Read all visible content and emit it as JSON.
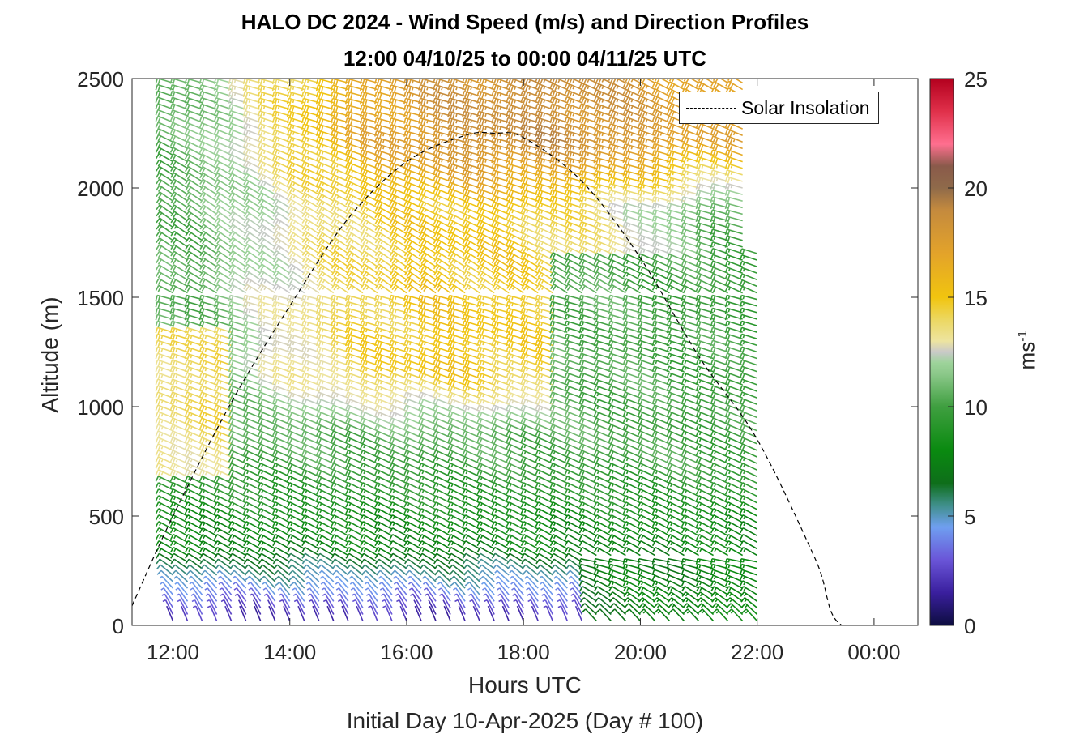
{
  "title_line1": "HALO DC 2024 - Wind Speed (m/s) and Direction Profiles",
  "title_line2": "12:00 04/10/25 to 00:00 04/11/25  UTC",
  "xlabel": "Hours UTC",
  "sublabel": "Initial Day 10-Apr-2025 (Day # 100)",
  "ylabel": "Altitude (m)",
  "legend_label": "Solar Insolation",
  "colorbar": {
    "unit_base": "ms",
    "unit_exp": "-1",
    "ticks": [
      "0",
      "5",
      "10",
      "15",
      "20",
      "25"
    ],
    "range": [
      0,
      25
    ]
  },
  "chart_data": {
    "type": "wind-barb profile",
    "x_axis": {
      "label": "Hours UTC",
      "range_hours": [
        11.3,
        24.75
      ],
      "ticks": [
        12,
        14,
        16,
        18,
        20,
        22,
        24
      ],
      "tick_labels": [
        "12:00",
        "14:00",
        "16:00",
        "18:00",
        "20:00",
        "22:00",
        "00:00"
      ]
    },
    "y_axis": {
      "label": "Altitude (m)",
      "range": [
        0,
        2500
      ],
      "ticks": [
        0,
        500,
        1000,
        1500,
        2000,
        2500
      ],
      "tick_labels": [
        "0",
        "500",
        "1000",
        "1500",
        "2000",
        "2500"
      ]
    },
    "profile_times_hours": {
      "start": 12.0,
      "end": 22.0,
      "interval_minutes": 15
    },
    "altitude_levels_m": {
      "start": 20,
      "end": 2480,
      "interval": 30
    },
    "solar_insolation_curve": {
      "style": "dashed black",
      "points": [
        [
          11.3,
          90
        ],
        [
          12.0,
          500
        ],
        [
          13.0,
          1020
        ],
        [
          14.0,
          1460
        ],
        [
          15.0,
          1860
        ],
        [
          16.0,
          2120
        ],
        [
          17.0,
          2240
        ],
        [
          17.5,
          2250
        ],
        [
          18.0,
          2230
        ],
        [
          19.0,
          2030
        ],
        [
          20.0,
          1680
        ],
        [
          21.0,
          1230
        ],
        [
          22.0,
          850
        ],
        [
          23.0,
          300
        ],
        [
          23.45,
          0
        ],
        [
          24.75,
          0
        ]
      ]
    },
    "colorbar_stops": [
      [
        0,
        "#0d0d40"
      ],
      [
        1.5,
        "#3a1f9e"
      ],
      [
        3,
        "#6a55d8"
      ],
      [
        4.5,
        "#6f9ff0"
      ],
      [
        5.5,
        "#3f8f8a"
      ],
      [
        6.5,
        "#0e6e1a"
      ],
      [
        8,
        "#0a8a10"
      ],
      [
        10,
        "#3f9f40"
      ],
      [
        11.5,
        "#8cc88a"
      ],
      [
        12,
        "#9dd39a"
      ],
      [
        12.5,
        "#c9c9c9"
      ],
      [
        13,
        "#ede4a0"
      ],
      [
        14,
        "#ecd760"
      ],
      [
        15,
        "#f1c40f"
      ],
      [
        17,
        "#e3a32a"
      ],
      [
        19,
        "#c48a3e"
      ],
      [
        20,
        "#8f6a4a"
      ],
      [
        21,
        "#8a5a4a"
      ],
      [
        22,
        "#ff6f8f"
      ],
      [
        23.5,
        "#e0304a"
      ],
      [
        25,
        "#b3001e"
      ]
    ],
    "wind_speed_regions": [
      {
        "layer_m": [
          0,
          300
        ],
        "speed_ms": [
          1,
          6
        ],
        "description": "light winds near surface"
      },
      {
        "layer_m": [
          300,
          1000
        ],
        "speed_ms": [
          6,
          11
        ],
        "description": "moderate green winds"
      },
      {
        "layer_m": [
          1000,
          2000
        ],
        "speed_ms": [
          10,
          15
        ],
        "description": "stronger afternoon winds aloft"
      },
      {
        "layer_m": [
          2000,
          2500
        ],
        "speed_ms": [
          14,
          20
        ],
        "description": "strong winds aloft late in period"
      }
    ]
  }
}
